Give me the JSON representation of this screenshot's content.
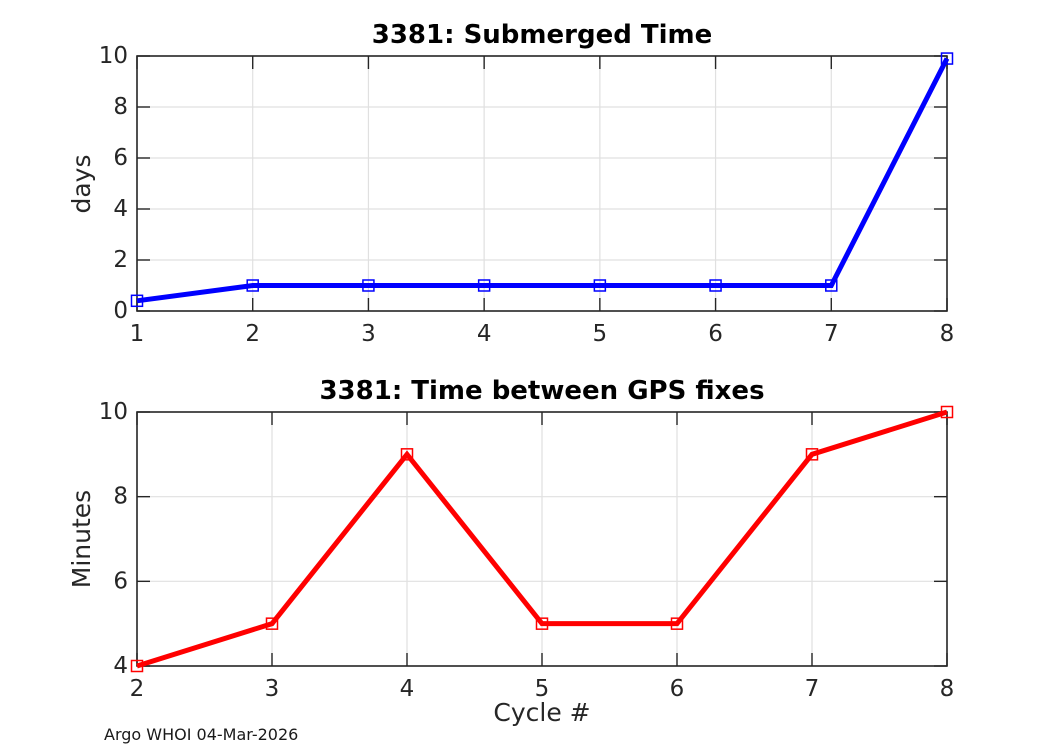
{
  "figure": {
    "footer_text": "Argo WHOI 04-Mar-2026",
    "background_color": "#ffffff",
    "axis_color": "#262626",
    "grid_color": "#e0e0e0",
    "tick_label_color": "#262626",
    "title_color": "#000000"
  },
  "chart_data": [
    {
      "type": "line",
      "title": "3381: Submerged Time",
      "xlabel": "",
      "ylabel": "days",
      "x": [
        1,
        2,
        3,
        4,
        5,
        6,
        7,
        8
      ],
      "y": [
        0.4,
        1,
        1,
        1,
        1,
        1,
        1,
        9.9
      ],
      "xlim": [
        1,
        8
      ],
      "ylim": [
        0,
        10
      ],
      "xticks": [
        1,
        2,
        3,
        4,
        5,
        6,
        7,
        8
      ],
      "yticks": [
        0,
        2,
        4,
        6,
        8,
        10
      ],
      "grid": true,
      "legend": null,
      "line_color": "#0000ff",
      "line_width": 5,
      "marker": "open-square",
      "marker_size": 11
    },
    {
      "type": "line",
      "title": "3381: Time between GPS fixes",
      "xlabel": "Cycle #",
      "ylabel": "Minutes",
      "x": [
        2,
        3,
        4,
        5,
        6,
        7,
        8
      ],
      "y": [
        4,
        5,
        9,
        5,
        5,
        9,
        10
      ],
      "xlim": [
        2,
        8
      ],
      "ylim": [
        4,
        10
      ],
      "xticks": [
        2,
        3,
        4,
        5,
        6,
        7,
        8
      ],
      "yticks": [
        4,
        6,
        8,
        10
      ],
      "grid": true,
      "legend": null,
      "line_color": "#ff0000",
      "line_width": 5,
      "marker": "open-square",
      "marker_size": 11
    }
  ]
}
